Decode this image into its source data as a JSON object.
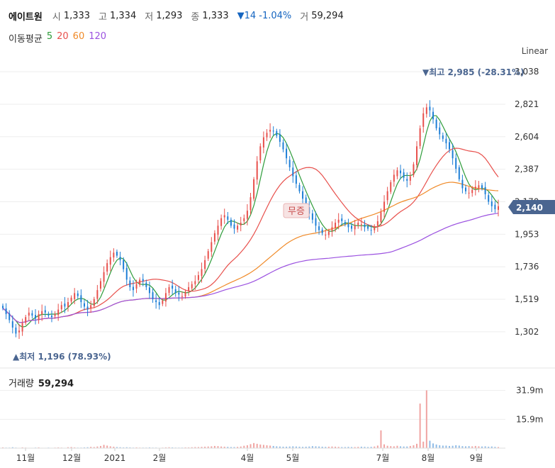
{
  "header": {
    "name": "에이트원",
    "open_label": "시",
    "open": "1,333",
    "high_label": "고",
    "high": "1,334",
    "low_label": "저",
    "low": "1,293",
    "close_label": "종",
    "close": "1,333",
    "change": "▼14 -1.04%",
    "volume_label": "거",
    "volume": "59,294"
  },
  "ma_legend": {
    "title": "이동평균",
    "items": [
      {
        "label": "5",
        "color": "#2e9c3a"
      },
      {
        "label": "20",
        "color": "#e8504c"
      },
      {
        "label": "60",
        "color": "#f08a28"
      },
      {
        "label": "120",
        "color": "#9b51e0"
      }
    ]
  },
  "scale_label": "Linear",
  "volume_panel": {
    "title": "거래량",
    "value": "59,294"
  },
  "colors": {
    "up": "#e8504c",
    "down": "#1e7fd6",
    "ma5": "#2e9c3a",
    "ma20": "#e8504c",
    "ma60": "#f08a28",
    "ma120": "#9b51e0",
    "badge": "#4a6590"
  },
  "chart_data": {
    "type": "candlestick",
    "y_ticks": [
      "3,038",
      "2,821",
      "2,604",
      "2,387",
      "2,170",
      "1,953",
      "1,736",
      "1,519",
      "1,302"
    ],
    "ylim": [
      1150,
      3100
    ],
    "volume_ticks": [
      "31.9m",
      "15.9m"
    ],
    "x_ticks": [
      "11월",
      "12월",
      "2021",
      "2월",
      "4월",
      "5월",
      "7월",
      "8월",
      "9월"
    ],
    "current_price": "2,140",
    "max_label": "▼최고 2,985 (-28.31%)",
    "min_label": "▲최저 1,196 (78.93%)",
    "annotation": "무증",
    "close_series": [
      1460,
      1420,
      1380,
      1330,
      1290,
      1310,
      1360,
      1400,
      1430,
      1410,
      1390,
      1420,
      1440,
      1430,
      1410,
      1400,
      1420,
      1450,
      1480,
      1470,
      1500,
      1530,
      1560,
      1540,
      1500,
      1470,
      1450,
      1480,
      1520,
      1580,
      1640,
      1700,
      1760,
      1800,
      1830,
      1810,
      1780,
      1720,
      1650,
      1600,
      1580,
      1620,
      1650,
      1640,
      1600,
      1560,
      1520,
      1500,
      1480,
      1510,
      1560,
      1600,
      1590,
      1560,
      1550,
      1540,
      1570,
      1600,
      1620,
      1640,
      1680,
      1720,
      1780,
      1840,
      1900,
      1960,
      2010,
      2060,
      2080,
      2050,
      2010,
      1990,
      2010,
      2030,
      2060,
      2110,
      2200,
      2320,
      2440,
      2540,
      2600,
      2630,
      2650,
      2640,
      2610,
      2570,
      2520,
      2460,
      2400,
      2340,
      2290,
      2240,
      2190,
      2140,
      2090,
      2050,
      2010,
      1980,
      1960,
      1950,
      1970,
      2000,
      2030,
      2050,
      2040,
      2020,
      2000,
      1990,
      2010,
      2030,
      2020,
      2000,
      1990,
      1980,
      2000,
      2040,
      2100,
      2170,
      2240,
      2300,
      2350,
      2380,
      2360,
      2330,
      2310,
      2340,
      2420,
      2540,
      2660,
      2760,
      2800,
      2780,
      2720,
      2660,
      2620,
      2590,
      2560,
      2520,
      2460,
      2390,
      2320,
      2260,
      2240,
      2230,
      2250,
      2270,
      2280,
      2260,
      2220,
      2170,
      2140,
      2120,
      2140
    ],
    "volume_series": [
      0.4,
      0.3,
      0.3,
      0.5,
      0.3,
      0.2,
      0.4,
      0.3,
      0.2,
      0.2,
      0.3,
      0.4,
      0.2,
      0.2,
      0.3,
      0.2,
      0.3,
      0.4,
      0.3,
      0.2,
      0.5,
      0.6,
      0.4,
      0.3,
      0.3,
      0.4,
      0.5,
      0.7,
      0.6,
      0.9,
      1.2,
      1.8,
      1.4,
      1.0,
      0.8,
      0.6,
      0.5,
      0.4,
      0.5,
      0.4,
      0.3,
      0.4,
      0.3,
      0.3,
      0.3,
      0.4,
      0.3,
      0.3,
      0.2,
      0.3,
      0.4,
      0.5,
      0.4,
      0.3,
      0.3,
      0.3,
      0.4,
      0.4,
      0.5,
      0.6,
      0.6,
      0.7,
      0.8,
      0.9,
      1.0,
      1.2,
      1.1,
      0.9,
      0.8,
      0.7,
      0.6,
      0.6,
      0.7,
      0.9,
      1.3,
      1.6,
      2.2,
      2.8,
      2.4,
      2.0,
      1.8,
      1.6,
      1.4,
      1.2,
      1.0,
      0.9,
      0.8,
      0.8,
      0.9,
      1.0,
      0.9,
      0.8,
      0.7,
      0.8,
      0.9,
      1.1,
      1.0,
      0.9,
      0.8,
      0.7,
      0.8,
      0.9,
      0.8,
      0.7,
      0.6,
      0.6,
      0.7,
      0.6,
      0.6,
      0.7,
      0.8,
      0.7,
      0.6,
      0.7,
      0.9,
      1.4,
      9.8,
      2.1,
      1.3,
      1.1,
      1.0,
      1.3,
      1.0,
      0.9,
      0.9,
      1.2,
      1.6,
      2.4,
      24.6,
      3.6,
      31.9,
      4.1,
      2.6,
      2.0,
      1.6,
      1.4,
      1.4,
      1.2,
      1.3,
      1.6,
      1.4,
      1.1,
      1.0,
      1.1,
      1.0,
      1.2,
      1.0,
      0.9,
      1.0,
      0.8,
      0.9,
      0.7,
      0.6
    ]
  }
}
